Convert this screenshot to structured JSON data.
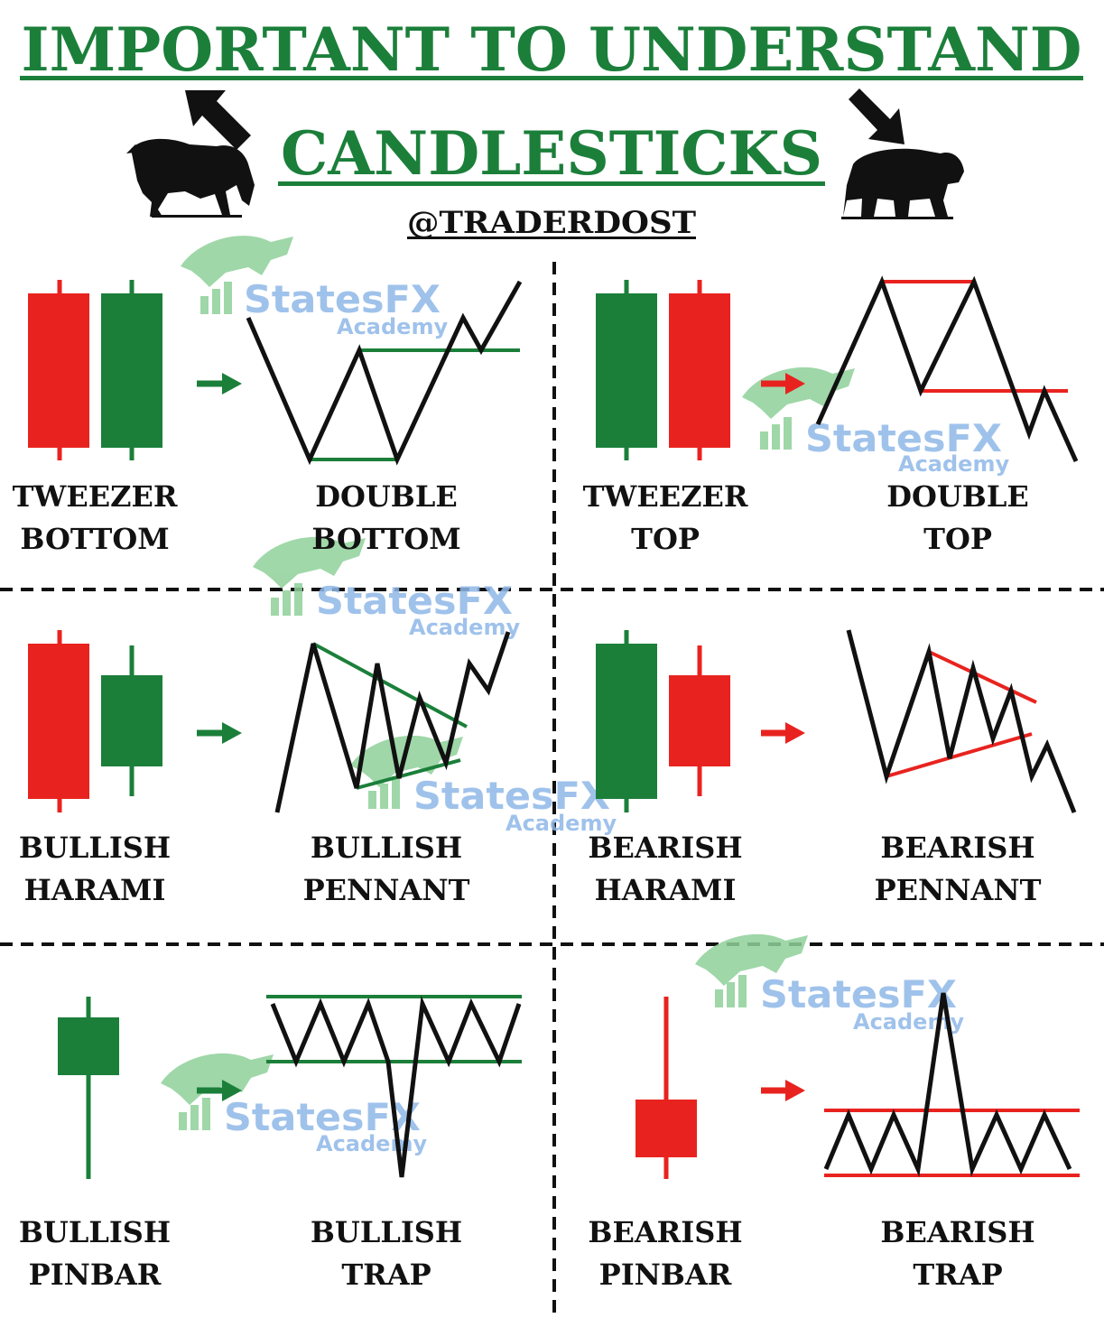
{
  "header": {
    "title_line1": "IMPORTANT TO UNDERSTAND",
    "title_line2": "CANDLESTICKS",
    "handle": "@TRADERDOST"
  },
  "colors": {
    "green": "#1b7f3a",
    "red": "#e8231f",
    "black": "#111111",
    "watermark": "#8fd19a",
    "watermark_text": "#8fb8e8"
  },
  "watermark": {
    "brand": "StatesFX",
    "sub": "Academy"
  },
  "patterns": [
    {
      "id": "tweezer-bottom",
      "line1": "TWEEZER",
      "line2": "BOTTOM"
    },
    {
      "id": "double-bottom",
      "line1": "DOUBLE",
      "line2": "BOTTOM"
    },
    {
      "id": "tweezer-top",
      "line1": "TWEEZER",
      "line2": "TOP"
    },
    {
      "id": "double-top",
      "line1": "DOUBLE",
      "line2": "TOP"
    },
    {
      "id": "bullish-harami",
      "line1": "BULLISH",
      "line2": "HARAMI"
    },
    {
      "id": "bullish-pennant",
      "line1": "BULLISH",
      "line2": "PENNANT"
    },
    {
      "id": "bearish-harami",
      "line1": "BEARISH",
      "line2": "HARAMI"
    },
    {
      "id": "bearish-pennant",
      "line1": "BEARISH",
      "line2": "PENNANT"
    },
    {
      "id": "bullish-pinbar",
      "line1": "BULLISH",
      "line2": "PINBAR"
    },
    {
      "id": "bullish-trap",
      "line1": "BULLISH",
      "line2": "TRAP"
    },
    {
      "id": "bearish-pinbar",
      "line1": "BEARISH",
      "line2": "PINBAR"
    },
    {
      "id": "bearish-trap",
      "line1": "BEARISH",
      "line2": "TRAP"
    }
  ]
}
